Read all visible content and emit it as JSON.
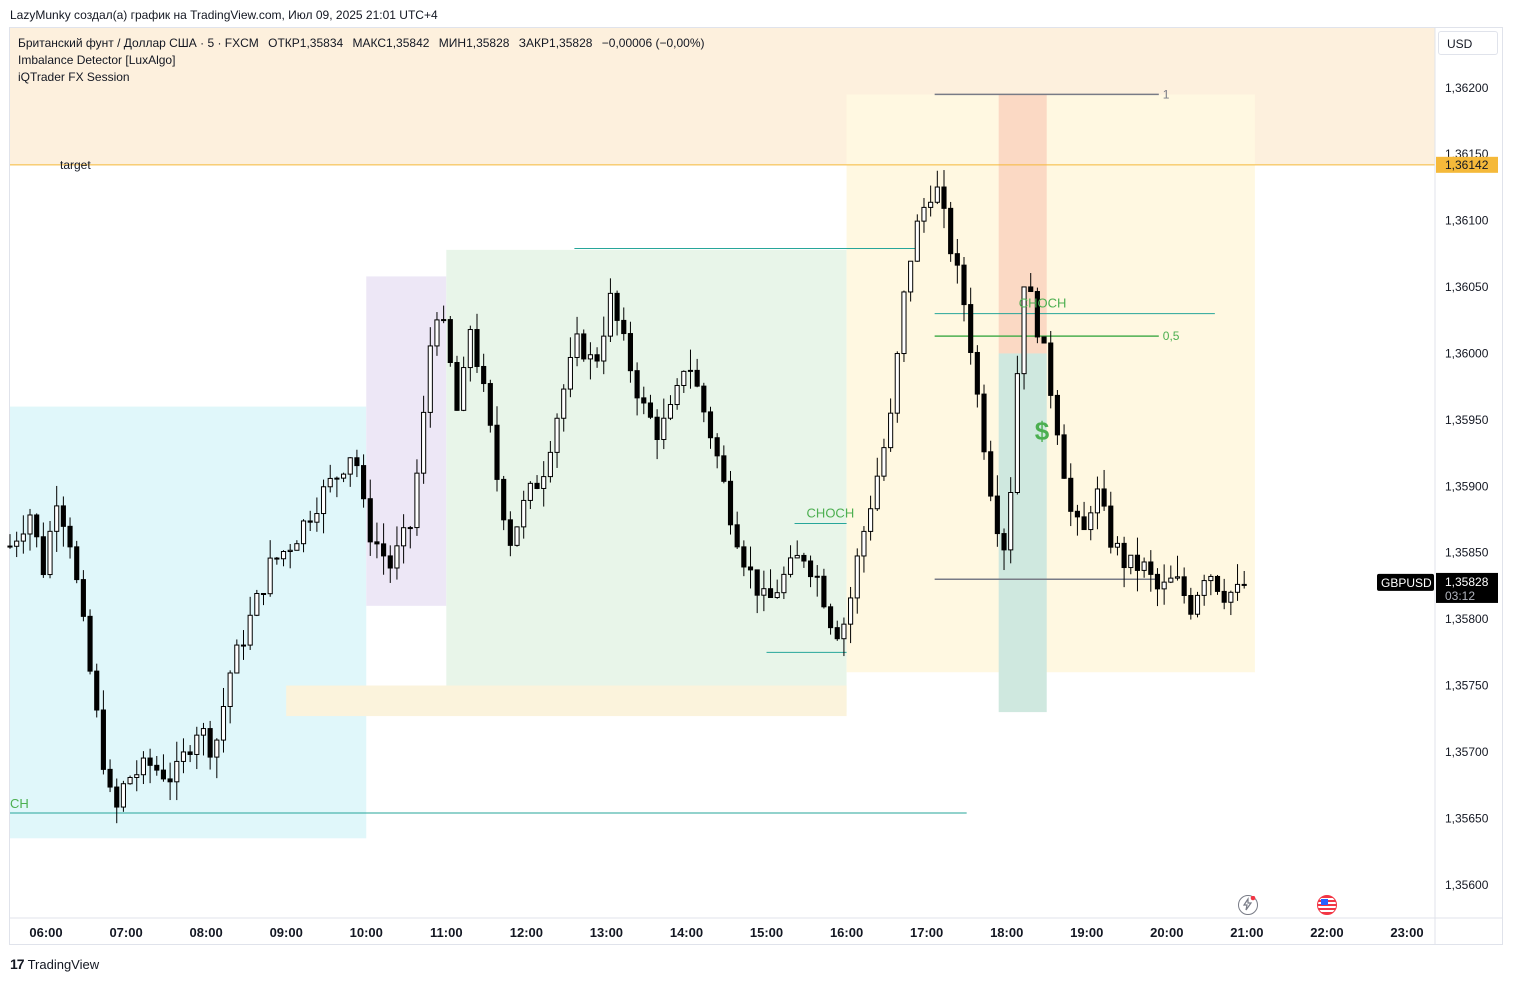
{
  "topline": "LazyMunky создал(а) график на TradingView.com, Июл 09, 2025 21:01 UTC+4",
  "legend": {
    "symbol": "Британский фунт / Доллар США · 5 · FXCM",
    "open": "ОТКР1,35834",
    "high": "МАКС1,35842",
    "low": "МИН1,35828",
    "close": "ЗАКР1,35828",
    "change": "−0,00006 (−0,00%)",
    "indicator1": "Imbalance Detector [LuxAlgo]",
    "indicator2": "iQTrader FX Session"
  },
  "currency_button": "USD",
  "footer_brand": "TradingView",
  "colors": {
    "up": "#ffffff",
    "down": "#000000",
    "target_line": "#f5b93a",
    "choch": "#4caf50",
    "session_cyan": "#e0f7fa",
    "session_purple": "#ede7f6",
    "session_green": "#e8f5e9",
    "session_yellow": "#fff8e1",
    "top_zone": "#fdf0dd"
  },
  "chart_data": {
    "type": "candlestick",
    "symbol": "GBPUSD",
    "x_ticks": [
      "06:00",
      "07:00",
      "08:00",
      "09:00",
      "10:00",
      "11:00",
      "12:00",
      "13:00",
      "14:00",
      "15:00",
      "16:00",
      "17:00",
      "18:00",
      "19:00",
      "20:00",
      "21:00",
      "22:00",
      "23:00"
    ],
    "y_ticks": [
      "1,36200",
      "1,36150",
      "1,36100",
      "1,36050",
      "1,36000",
      "1,35950",
      "1,35900",
      "1,35850",
      "1,35800",
      "1,35750",
      "1,35700",
      "1,35650",
      "1,35600"
    ],
    "ylim": [
      1.35575,
      1.36245
    ],
    "xlim_hours": [
      5.55,
      23.35
    ],
    "current_price": {
      "label": "1,35828",
      "value": 1.35828,
      "countdown": "03:12",
      "symbol_tag": "GBPUSD"
    },
    "target": {
      "label": "target",
      "value": 1.36142,
      "price_label": "1,36142"
    },
    "fib_labels": {
      "level_1": "1",
      "level_05": "0,5"
    },
    "choch_labels": [
      "CH",
      "CHOCH",
      "CHOCH"
    ],
    "anchor_closes": [
      [
        5.55,
        1.35855
      ],
      [
        5.8,
        1.3588
      ],
      [
        6.0,
        1.3583
      ],
      [
        6.1,
        1.359
      ],
      [
        6.3,
        1.3586
      ],
      [
        6.55,
        1.3576
      ],
      [
        6.7,
        1.357
      ],
      [
        6.85,
        1.3565
      ],
      [
        7.0,
        1.3568
      ],
      [
        7.3,
        1.3569
      ],
      [
        7.6,
        1.3568
      ],
      [
        7.9,
        1.3572
      ],
      [
        8.1,
        1.357
      ],
      [
        8.3,
        1.3576
      ],
      [
        8.55,
        1.358
      ],
      [
        8.8,
        1.3584
      ],
      [
        9.1,
        1.3586
      ],
      [
        9.4,
        1.3589
      ],
      [
        9.65,
        1.3591
      ],
      [
        9.85,
        1.3593
      ],
      [
        10.0,
        1.3587
      ],
      [
        10.3,
        1.3584
      ],
      [
        10.55,
        1.3587
      ],
      [
        10.7,
        1.3594
      ],
      [
        10.85,
        1.3604
      ],
      [
        11.0,
        1.3601
      ],
      [
        11.15,
        1.3595
      ],
      [
        11.3,
        1.3602
      ],
      [
        11.5,
        1.3596
      ],
      [
        11.65,
        1.359
      ],
      [
        11.8,
        1.3586
      ],
      [
        12.0,
        1.3589
      ],
      [
        12.2,
        1.3591
      ],
      [
        12.45,
        1.3597
      ],
      [
        12.65,
        1.3601
      ],
      [
        12.85,
        1.3599
      ],
      [
        13.05,
        1.3604
      ],
      [
        13.25,
        1.36
      ],
      [
        13.45,
        1.3596
      ],
      [
        13.65,
        1.3594
      ],
      [
        13.85,
        1.3596
      ],
      [
        14.0,
        1.36
      ],
      [
        14.15,
        1.3597
      ],
      [
        14.35,
        1.3593
      ],
      [
        14.55,
        1.3588
      ],
      [
        14.75,
        1.3584
      ],
      [
        15.0,
        1.3581
      ],
      [
        15.2,
        1.3583
      ],
      [
        15.45,
        1.3585
      ],
      [
        15.65,
        1.3583
      ],
      [
        15.85,
        1.3579
      ],
      [
        16.0,
        1.358
      ],
      [
        16.15,
        1.3585
      ],
      [
        16.35,
        1.359
      ],
      [
        16.55,
        1.3595
      ],
      [
        16.75,
        1.3606
      ],
      [
        16.9,
        1.361
      ],
      [
        17.1,
        1.3613
      ],
      [
        17.3,
        1.3608
      ],
      [
        17.5,
        1.3603
      ],
      [
        17.65,
        1.3596
      ],
      [
        17.85,
        1.3588
      ],
      [
        18.0,
        1.3585
      ],
      [
        18.1,
        1.3595
      ],
      [
        18.2,
        1.3606
      ],
      [
        18.35,
        1.3603
      ],
      [
        18.5,
        1.3599
      ],
      [
        18.65,
        1.3594
      ],
      [
        18.8,
        1.3588
      ],
      [
        18.95,
        1.3586
      ],
      [
        19.1,
        1.359
      ],
      [
        19.3,
        1.3586
      ],
      [
        19.5,
        1.3584
      ],
      [
        19.7,
        1.3584
      ],
      [
        19.9,
        1.3582
      ],
      [
        20.1,
        1.3583
      ],
      [
        20.3,
        1.3581
      ],
      [
        20.5,
        1.3584
      ],
      [
        20.7,
        1.3582
      ],
      [
        20.9,
        1.3582
      ],
      [
        21.0,
        1.35828
      ]
    ],
    "range_high": 1.36195,
    "range_low": 1.3583,
    "choch_levels": [
      1.35654,
      1.35872,
      1.3603,
      1.36079,
      1.35775
    ]
  }
}
